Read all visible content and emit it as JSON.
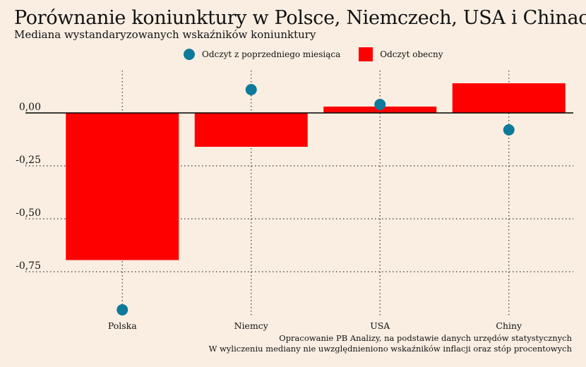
{
  "title": "Porównanie koniunktury w Polsce, Niemczech, USA i Chinach",
  "subtitle": "Mediana wystandaryzowanych wskaźników koniunktury",
  "legend": {
    "previous": "Odczyt z poprzedniego miesiąca",
    "current": "Odczyt obecny"
  },
  "footer": {
    "line1": "Opracowanie PB Analizy, na podstawie danych urzędów statystycznych",
    "line2": "W wyliczeniu mediany nie uwzględnieniono wskaźników inflacji oraz stóp procentowych"
  },
  "colors": {
    "background": "#FAEEE2",
    "current": "#FF0000",
    "previous": "#0E7A9B",
    "grid": "#333333"
  },
  "chart_data": {
    "type": "bar",
    "categories": [
      "Polska",
      "Niemcy",
      "USA",
      "Chiny"
    ],
    "series": [
      {
        "name": "Odczyt obecny",
        "type": "bar",
        "values": [
          -0.695,
          -0.16,
          0.03,
          0.14
        ]
      },
      {
        "name": "Odczyt z poprzedniego miesiąca",
        "type": "scatter",
        "values": [
          -0.93,
          0.11,
          0.04,
          -0.08
        ]
      }
    ],
    "ylim": [
      -0.96,
      0.2
    ],
    "yticks": [
      0.0,
      -0.25,
      -0.5,
      -0.75
    ],
    "ytick_labels": [
      "0,00",
      "-0,25",
      "-0,50",
      "-0,75"
    ],
    "grid": true,
    "legend_position": "top"
  }
}
